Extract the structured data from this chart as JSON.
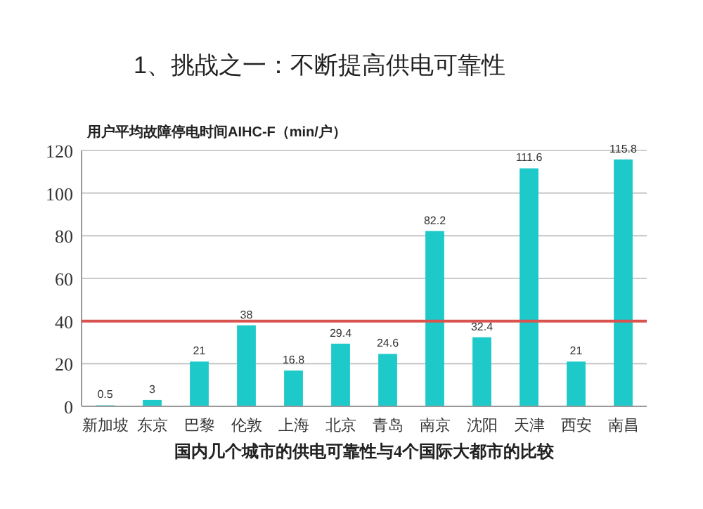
{
  "chart_data": {
    "type": "bar",
    "title": "1、挑战之一：不断提高供电可靠性",
    "subtitle": "用户平均故障停电时间AIHC-F（min/户）",
    "categories": [
      "新加坡",
      "东京",
      "巴黎",
      "伦敦",
      "上海",
      "北京",
      "青岛",
      "南京",
      "沈阳",
      "天津",
      "西安",
      "南昌"
    ],
    "values": [
      0.5,
      3,
      21,
      38,
      16.8,
      29.4,
      24.6,
      82.2,
      32.4,
      111.6,
      21,
      115.8
    ],
    "color": "#1ec9c9",
    "data_labels": true,
    "grid": "y",
    "ylim": [
      0,
      120
    ],
    "yticks": [
      0,
      20,
      40,
      60,
      80,
      100,
      120
    ],
    "ref_lines": [
      {
        "axis": "y",
        "value": 40,
        "color": "#d9534f"
      }
    ],
    "annotations": [
      "国内几个城市的供电可靠性与4个国际大都市的比较"
    ]
  }
}
